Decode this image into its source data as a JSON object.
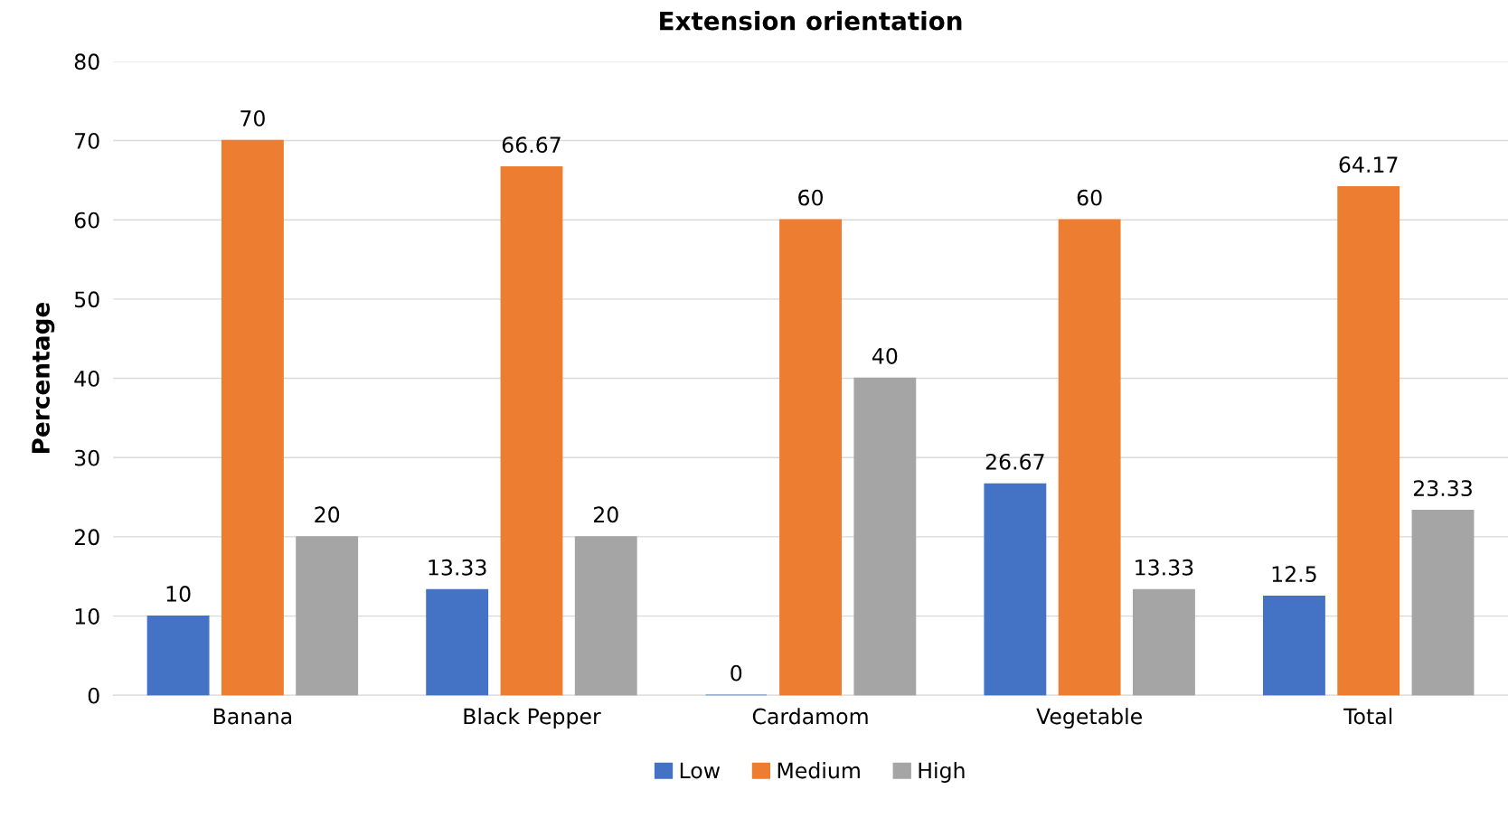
{
  "chart_data": {
    "type": "bar",
    "title": "Extension orientation",
    "ylabel": "Percentage",
    "categories": [
      "Banana",
      "Black Pepper",
      "Cardamom",
      "Vegetable",
      "Total"
    ],
    "series": [
      {
        "name": "Low",
        "color": "#4472c4",
        "values": [
          10,
          13.33,
          0,
          26.67,
          12.5
        ]
      },
      {
        "name": "Medium",
        "color": "#ed7d31",
        "values": [
          70,
          66.67,
          60,
          60,
          64.17
        ]
      },
      {
        "name": "High",
        "color": "#a5a5a5",
        "values": [
          20,
          20,
          40,
          13.33,
          23.33
        ]
      }
    ],
    "ylim": [
      0,
      80
    ],
    "yticks": [
      0,
      10,
      20,
      30,
      40,
      50,
      60,
      70,
      80
    ],
    "grid": "y",
    "legend": "bottom",
    "data_labels": true
  }
}
